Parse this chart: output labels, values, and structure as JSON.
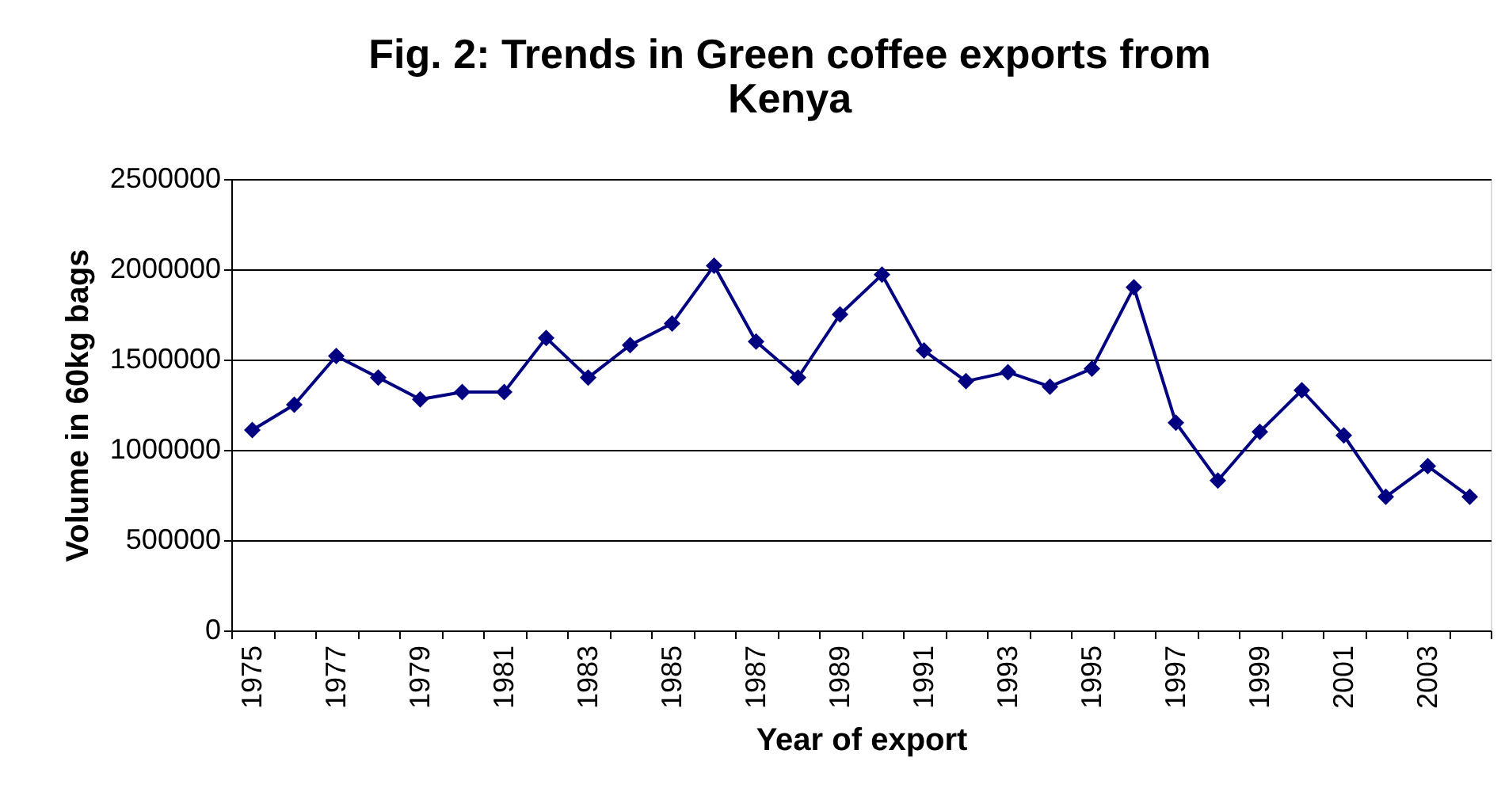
{
  "chart_data": {
    "type": "line",
    "title": "Fig. 2: Trends in Green coffee exports from Kenya",
    "xlabel": "Year of export",
    "ylabel": "Volume in 60kg bags",
    "categories": [
      "1975",
      null,
      "1977",
      null,
      "1979",
      null,
      "1981",
      null,
      "1983",
      null,
      "1985",
      null,
      "1987",
      null,
      "1989",
      null,
      "1991",
      null,
      "1993",
      null,
      "1995",
      null,
      "1997",
      null,
      "1999",
      null,
      "2001",
      null,
      "2003",
      null
    ],
    "series": [
      {
        "color": "#000080",
        "values": [
          1110000,
          1250000,
          1520000,
          1400000,
          1280000,
          1320000,
          1320000,
          1620000,
          1400000,
          1580000,
          1700000,
          2020000,
          1600000,
          1400000,
          1750000,
          1970000,
          1550000,
          1380000,
          1430000,
          1350000,
          1450000,
          1900000,
          1150000,
          830000,
          1100000,
          1330000,
          1080000,
          740000,
          910000,
          740000
        ]
      }
    ],
    "ylim": [
      0,
      2500000
    ],
    "yticks": [
      0,
      500000,
      1000000,
      1500000,
      2000000,
      2500000
    ],
    "grid": "y",
    "marker": "diamond",
    "line_style": "solid"
  }
}
